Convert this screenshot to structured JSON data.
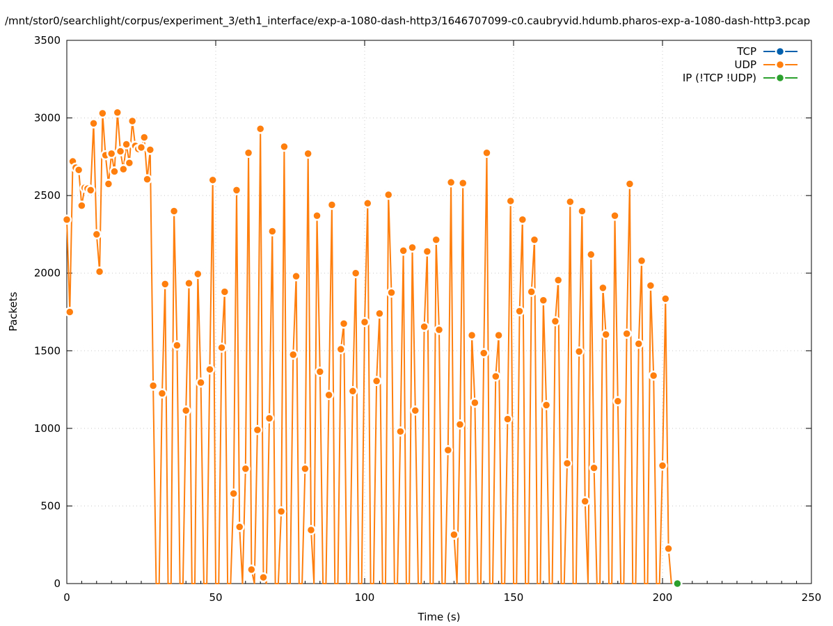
{
  "chart_data": {
    "type": "line",
    "title": "/mnt/stor0/searchlight/corpus/experiment_3/eth1_interface/exp-a-1080-dash-http3/1646707099-c0.caubryvid.hdumb.pharos-exp-a-1080-dash-http3.pcap",
    "xlabel": "Time (s)",
    "ylabel": "Packets",
    "xlim": [
      0,
      250
    ],
    "ylim": [
      0,
      3500
    ],
    "x_ticks": [
      0,
      50,
      100,
      150,
      200,
      250
    ],
    "y_ticks": [
      0,
      500,
      1000,
      1500,
      2000,
      2500,
      3000,
      3500
    ],
    "grid": true,
    "legend_position": "top-right",
    "series": [
      {
        "name": "TCP",
        "color": "#0060ad",
        "points": []
      },
      {
        "name": "UDP",
        "color": "#ff7f0e",
        "points": [
          [
            0,
            2345
          ],
          [
            1,
            1750
          ],
          [
            2,
            2720
          ],
          [
            3,
            2680
          ],
          [
            4,
            2665
          ],
          [
            5,
            2435
          ],
          [
            6,
            2550
          ],
          [
            7,
            2545
          ],
          [
            8,
            2535
          ],
          [
            9,
            2965
          ],
          [
            10,
            2250
          ],
          [
            11,
            2010
          ],
          [
            12,
            3030
          ],
          [
            13,
            2760
          ],
          [
            14,
            2575
          ],
          [
            15,
            2770
          ],
          [
            16,
            2655
          ],
          [
            17,
            3035
          ],
          [
            18,
            2785
          ],
          [
            19,
            2670
          ],
          [
            20,
            2830
          ],
          [
            21,
            2710
          ],
          [
            22,
            2980
          ],
          [
            23,
            2820
          ],
          [
            24,
            2800
          ],
          [
            25,
            2810
          ],
          [
            26,
            2875
          ],
          [
            27,
            2605
          ],
          [
            28,
            2795
          ],
          [
            29,
            1275
          ],
          [
            30,
            0
          ],
          [
            31,
            0
          ],
          [
            32,
            1225
          ],
          [
            33,
            1930
          ],
          [
            34,
            0
          ],
          [
            35,
            0
          ],
          [
            36,
            2400
          ],
          [
            37,
            1535
          ],
          [
            38,
            0
          ],
          [
            39,
            0
          ],
          [
            40,
            1115
          ],
          [
            41,
            1935
          ],
          [
            42,
            0
          ],
          [
            43,
            0
          ],
          [
            44,
            1995
          ],
          [
            45,
            1295
          ],
          [
            46,
            0
          ],
          [
            47,
            0
          ],
          [
            48,
            1380
          ],
          [
            49,
            2600
          ],
          [
            50,
            0
          ],
          [
            51,
            0
          ],
          [
            52,
            1520
          ],
          [
            53,
            1880
          ],
          [
            54,
            0
          ],
          [
            55,
            0
          ],
          [
            56,
            580
          ],
          [
            57,
            2535
          ],
          [
            58,
            365
          ],
          [
            59,
            0
          ],
          [
            60,
            740
          ],
          [
            61,
            2775
          ],
          [
            62,
            90
          ],
          [
            63,
            0
          ],
          [
            64,
            990
          ],
          [
            65,
            2930
          ],
          [
            66,
            40
          ],
          [
            67,
            0
          ],
          [
            68,
            1065
          ],
          [
            69,
            2270
          ],
          [
            70,
            0
          ],
          [
            71,
            0
          ],
          [
            72,
            465
          ],
          [
            73,
            2815
          ],
          [
            74,
            0
          ],
          [
            75,
            0
          ],
          [
            76,
            1475
          ],
          [
            77,
            1980
          ],
          [
            78,
            0
          ],
          [
            79,
            0
          ],
          [
            80,
            740
          ],
          [
            81,
            2770
          ],
          [
            82,
            345
          ],
          [
            83,
            0
          ],
          [
            84,
            2370
          ],
          [
            85,
            1365
          ],
          [
            86,
            0
          ],
          [
            87,
            0
          ],
          [
            88,
            1215
          ],
          [
            89,
            2440
          ],
          [
            90,
            0
          ],
          [
            91,
            0
          ],
          [
            92,
            1510
          ],
          [
            93,
            1675
          ],
          [
            94,
            0
          ],
          [
            95,
            0
          ],
          [
            96,
            1240
          ],
          [
            97,
            2000
          ],
          [
            98,
            0
          ],
          [
            99,
            0
          ],
          [
            100,
            1685
          ],
          [
            101,
            2450
          ],
          [
            102,
            0
          ],
          [
            103,
            0
          ],
          [
            104,
            1305
          ],
          [
            105,
            1740
          ],
          [
            106,
            0
          ],
          [
            107,
            0
          ],
          [
            108,
            2505
          ],
          [
            109,
            1875
          ],
          [
            110,
            0
          ],
          [
            111,
            0
          ],
          [
            112,
            980
          ],
          [
            113,
            2145
          ],
          [
            114,
            0
          ],
          [
            115,
            0
          ],
          [
            116,
            2165
          ],
          [
            117,
            1115
          ],
          [
            118,
            0
          ],
          [
            119,
            0
          ],
          [
            120,
            1655
          ],
          [
            121,
            2140
          ],
          [
            122,
            0
          ],
          [
            123,
            0
          ],
          [
            124,
            2215
          ],
          [
            125,
            1635
          ],
          [
            126,
            0
          ],
          [
            127,
            0
          ],
          [
            128,
            860
          ],
          [
            129,
            2585
          ],
          [
            130,
            315
          ],
          [
            131,
            0
          ],
          [
            132,
            1025
          ],
          [
            133,
            2580
          ],
          [
            134,
            0
          ],
          [
            135,
            0
          ],
          [
            136,
            1600
          ],
          [
            137,
            1165
          ],
          [
            138,
            0
          ],
          [
            139,
            0
          ],
          [
            140,
            1485
          ],
          [
            141,
            2775
          ],
          [
            142,
            0
          ],
          [
            143,
            0
          ],
          [
            144,
            1335
          ],
          [
            145,
            1600
          ],
          [
            146,
            0
          ],
          [
            147,
            0
          ],
          [
            148,
            1060
          ],
          [
            149,
            2465
          ],
          [
            150,
            0
          ],
          [
            151,
            0
          ],
          [
            152,
            1755
          ],
          [
            153,
            2345
          ],
          [
            154,
            0
          ],
          [
            155,
            0
          ],
          [
            156,
            1880
          ],
          [
            157,
            2215
          ],
          [
            158,
            0
          ],
          [
            159,
            0
          ],
          [
            160,
            1825
          ],
          [
            161,
            1150
          ],
          [
            162,
            0
          ],
          [
            163,
            0
          ],
          [
            164,
            1690
          ],
          [
            165,
            1955
          ],
          [
            166,
            0
          ],
          [
            167,
            0
          ],
          [
            168,
            775
          ],
          [
            169,
            2460
          ],
          [
            170,
            0
          ],
          [
            171,
            0
          ],
          [
            172,
            1495
          ],
          [
            173,
            2400
          ],
          [
            174,
            530
          ],
          [
            175,
            0
          ],
          [
            176,
            2120
          ],
          [
            177,
            745
          ],
          [
            178,
            0
          ],
          [
            179,
            0
          ],
          [
            180,
            1905
          ],
          [
            181,
            1605
          ],
          [
            182,
            0
          ],
          [
            183,
            0
          ],
          [
            184,
            2370
          ],
          [
            185,
            1175
          ],
          [
            186,
            0
          ],
          [
            187,
            0
          ],
          [
            188,
            1610
          ],
          [
            189,
            2575
          ],
          [
            190,
            0
          ],
          [
            191,
            0
          ],
          [
            192,
            1545
          ],
          [
            193,
            2080
          ],
          [
            194,
            0
          ],
          [
            195,
            0
          ],
          [
            196,
            1920
          ],
          [
            197,
            1340
          ],
          [
            198,
            0
          ],
          [
            199,
            0
          ],
          [
            200,
            760
          ],
          [
            201,
            1835
          ],
          [
            202,
            225
          ],
          [
            203,
            0
          ]
        ]
      },
      {
        "name": "IP (!TCP  !UDP)",
        "color": "#2ca02c",
        "points": [
          [
            205,
            0
          ]
        ]
      }
    ]
  }
}
